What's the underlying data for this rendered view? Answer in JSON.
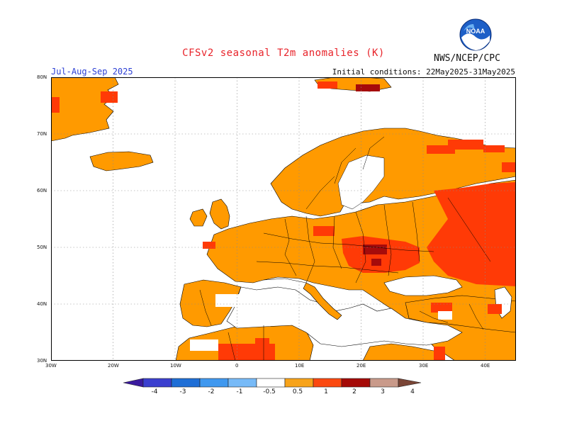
{
  "header": {
    "title": "CFSv2 seasonal T2m anomalies (K)",
    "season": "Jul-Aug-Sep 2025",
    "initial_conditions": "Initial conditions: 22May2025-31May2025",
    "agency": "NWS/NCEP/CPC",
    "logo_icon": "noaa-logo-icon"
  },
  "map": {
    "lat_labels": [
      "80N",
      "70N",
      "60N",
      "50N",
      "40N",
      "30N"
    ],
    "lon_labels": [
      "30W",
      "20W",
      "10W",
      "0",
      "10E",
      "20E",
      "30E",
      "40E"
    ],
    "lon_range": [
      -30,
      45
    ],
    "lat_range": [
      30,
      80
    ],
    "grid": "dotted",
    "background": "#ffffff"
  },
  "colorbar": {
    "labels": [
      "-4",
      "-3",
      "-2",
      "-1",
      "-0.5",
      "0.5",
      "1",
      "2",
      "3",
      "4"
    ],
    "colors": [
      "#3a1a9e",
      "#3b3fcf",
      "#1e6ed6",
      "#3f98ef",
      "#77baf7",
      "#ffffff",
      "#f7a31a",
      "#fb4910",
      "#a50a07",
      "#c99a8a",
      "#7a4536"
    ]
  },
  "legend_colors": {
    "warm1": "#ff9a00",
    "warm2": "#ff3a06",
    "warm3": "#a60b0b",
    "land_outline": "#000000"
  }
}
